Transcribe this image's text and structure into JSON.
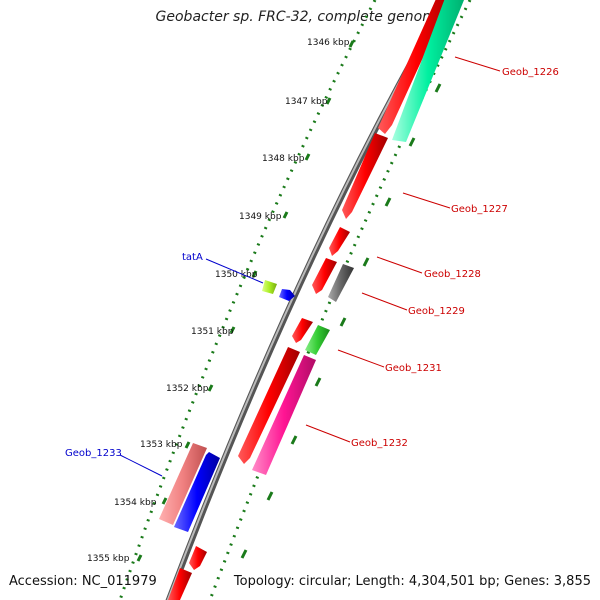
{
  "title": "Geobacter sp. FRC-32, complete genome",
  "footer": {
    "accession": "Accession: NC_011979",
    "summary": "Topology: circular; Length: 4,304,501 bp; Genes: 3,855"
  },
  "scale_ticks": [
    "1346 kbp",
    "1347 kbp",
    "1348 kbp",
    "1349 kbp",
    "1350 kbp",
    "1351 kbp",
    "1352 kbp",
    "1353 kbp",
    "1354 kbp",
    "1355 kbp"
  ],
  "genes_right": [
    {
      "name": "Geob_1226",
      "color": "#cc0000"
    },
    {
      "name": "Geob_1227",
      "color": "#cc0000"
    },
    {
      "name": "Geob_1228",
      "color": "#cc0000"
    },
    {
      "name": "Geob_1229",
      "color": "#cc0000"
    },
    {
      "name": "Geob_1231",
      "color": "#cc0000"
    },
    {
      "name": "Geob_1232",
      "color": "#cc0000"
    }
  ],
  "genes_left": [
    {
      "name": "tatA",
      "color": "#0000cc"
    },
    {
      "name": "Geob_1233",
      "color": "#0000cc"
    }
  ],
  "colors": {
    "backbone": "#888888",
    "dotted_track": "#1a7a1a",
    "cds_forward": "#ff0000",
    "cds_reverse_blue": "#0000ff",
    "teal": "#00ee99",
    "magenta": "#ff1493",
    "green": "#33cc33",
    "gray": "#666666",
    "lime": "#aaee22",
    "salmon": "#f08080"
  }
}
